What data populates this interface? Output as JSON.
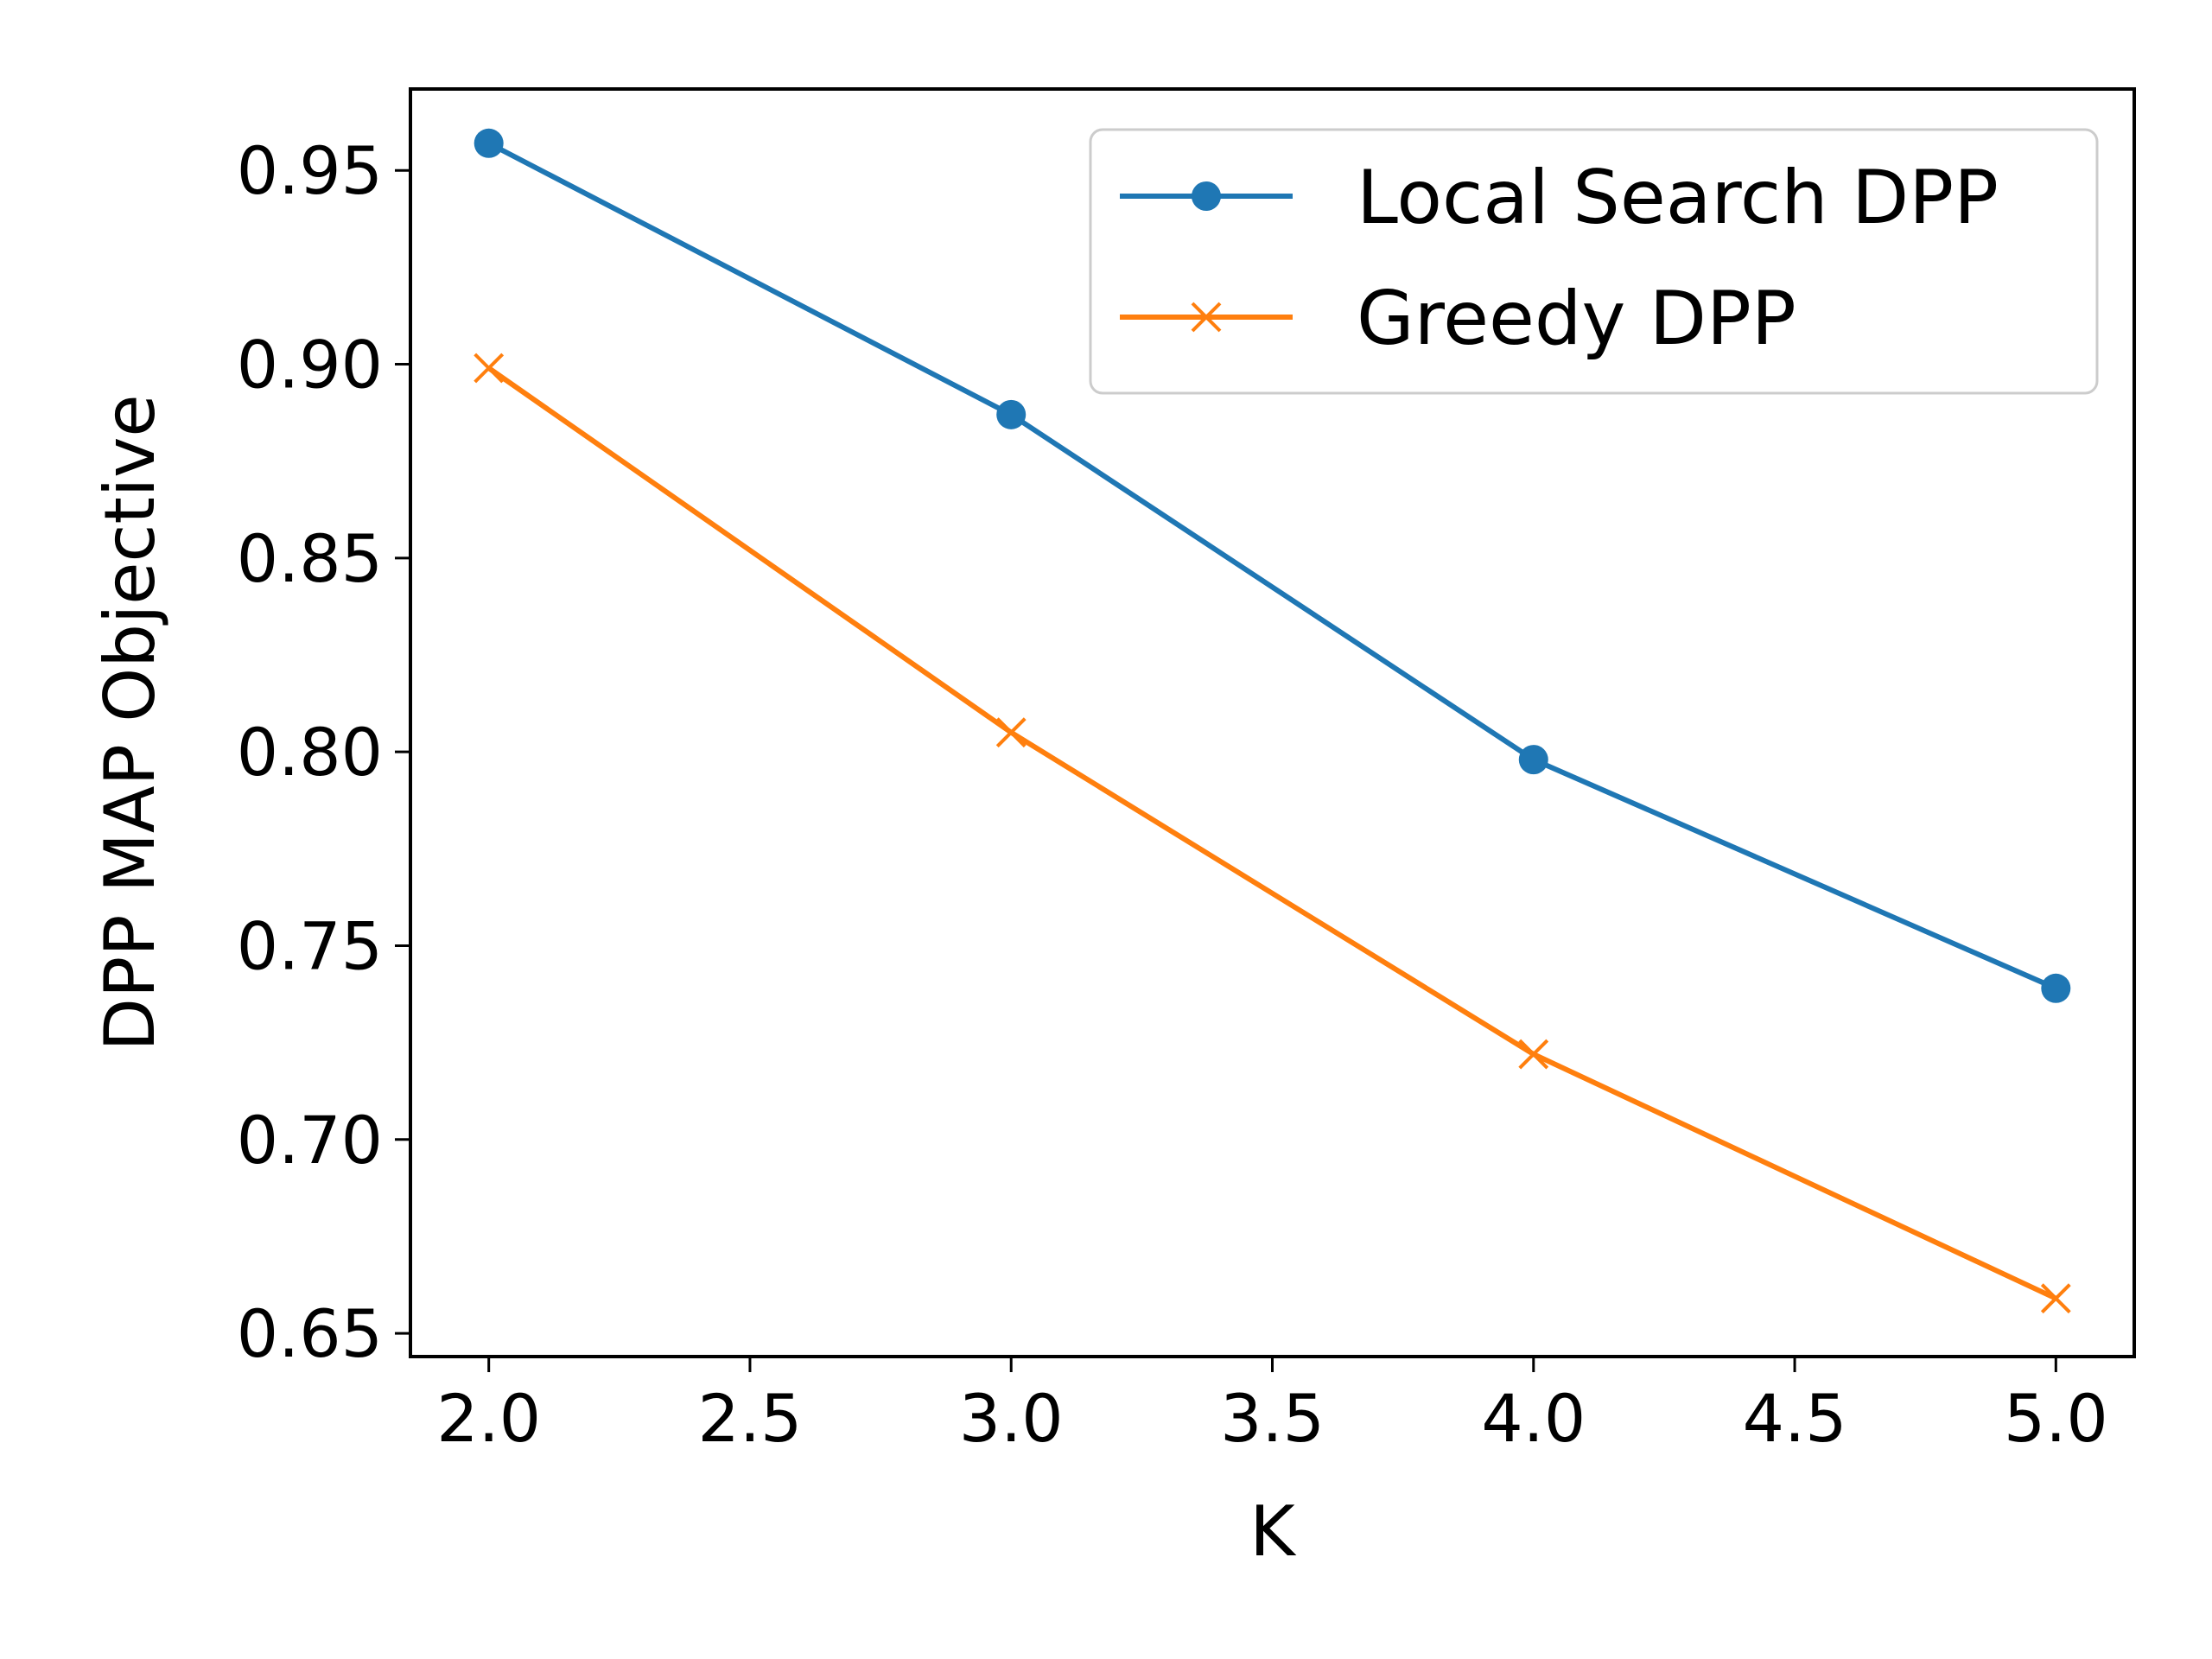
{
  "chart_data": {
    "type": "line",
    "title": "",
    "xlabel": "K",
    "ylabel": "DPP MAP Objective",
    "xlim": [
      1.85,
      5.15
    ],
    "ylim": [
      0.644,
      0.971
    ],
    "x_ticks": [
      2.0,
      2.5,
      3.0,
      3.5,
      4.0,
      4.5,
      5.0
    ],
    "x_tick_labels": [
      "2.0",
      "2.5",
      "3.0",
      "3.5",
      "4.0",
      "4.5",
      "5.0"
    ],
    "y_ticks": [
      0.65,
      0.7,
      0.75,
      0.8,
      0.85,
      0.9,
      0.95
    ],
    "y_tick_labels": [
      "0.65",
      "0.70",
      "0.75",
      "0.80",
      "0.85",
      "0.90",
      "0.95"
    ],
    "grid": false,
    "legend_position": "top-right",
    "x": [
      2,
      3,
      4,
      5
    ],
    "series": [
      {
        "name": "Local Search DPP",
        "values": [
          0.957,
          0.887,
          0.798,
          0.739
        ],
        "color": "#1f77b4",
        "marker": "circle"
      },
      {
        "name": "Greedy DPP",
        "values": [
          0.899,
          0.805,
          0.722,
          0.659
        ],
        "color": "#ff7f0e",
        "marker": "x"
      }
    ]
  }
}
